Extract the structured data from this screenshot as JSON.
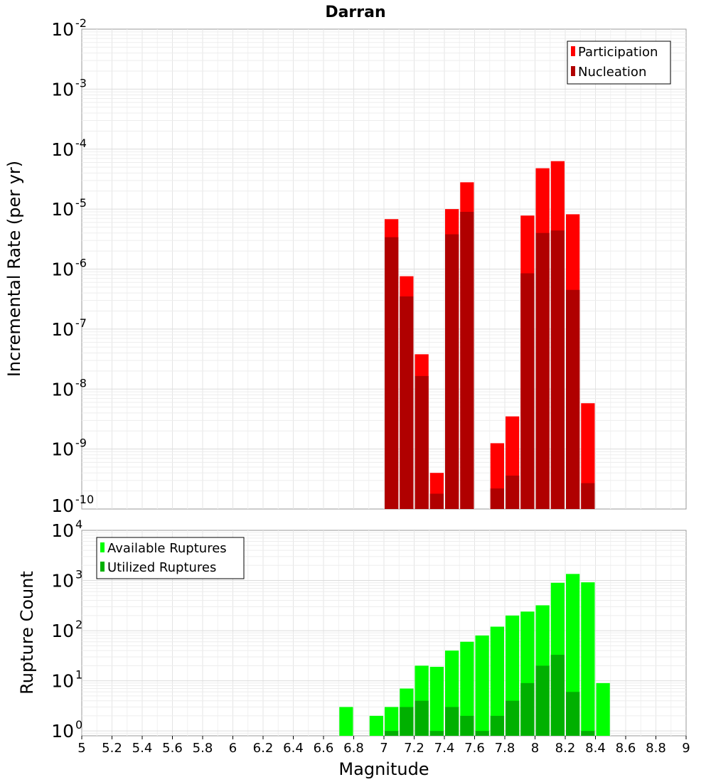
{
  "chart_data": [
    {
      "type": "bar",
      "title": "Darran",
      "ylabel": "Incremental Rate (per yr)",
      "xlabel": "",
      "xlim": [
        5,
        9
      ],
      "ylim": [
        1e-10,
        0.01
      ],
      "y_scale": "log",
      "y_ticks": [
        {
          "base": "10",
          "exp": "-2"
        },
        {
          "base": "10",
          "exp": "-3"
        },
        {
          "base": "10",
          "exp": "-4"
        },
        {
          "base": "10",
          "exp": "-5"
        },
        {
          "base": "10",
          "exp": "-6"
        },
        {
          "base": "10",
          "exp": "-7"
        },
        {
          "base": "10",
          "exp": "-8"
        },
        {
          "base": "10",
          "exp": "-9"
        },
        {
          "base": "10",
          "exp": "-10"
        }
      ],
      "grid": true,
      "legend_position": "top-right",
      "bin_width": 0.1,
      "x": [
        7.05,
        7.15,
        7.25,
        7.35,
        7.45,
        7.55,
        7.75,
        7.85,
        7.95,
        8.05,
        8.15,
        8.25,
        8.35
      ],
      "series": [
        {
          "name": "Participation",
          "color": "#ff0000",
          "values": [
            6.8e-06,
            7.6e-07,
            3.8e-08,
            4e-10,
            1e-05,
            2.8e-05,
            1.25e-09,
            3.5e-09,
            7.8e-06,
            4.8e-05,
            6.3e-05,
            8.2e-06,
            5.8e-09
          ]
        },
        {
          "name": "Nucleation",
          "color": "#b00000",
          "values": [
            3.4e-06,
            3.5e-07,
            1.65e-08,
            1.8e-10,
            3.8e-06,
            9e-06,
            2.2e-10,
            3.6e-10,
            8.5e-07,
            4e-06,
            4.4e-06,
            4.5e-07,
            2.7e-10
          ]
        }
      ]
    },
    {
      "type": "bar",
      "title": "",
      "ylabel": "Rupture Count",
      "xlabel": "Magnitude",
      "xlim": [
        5,
        9
      ],
      "ylim": [
        0.8,
        10000
      ],
      "y_scale": "log",
      "y_ticks": [
        {
          "base": "10",
          "exp": "4"
        },
        {
          "base": "10",
          "exp": "3"
        },
        {
          "base": "10",
          "exp": "2"
        },
        {
          "base": "10",
          "exp": "1"
        },
        {
          "base": "10",
          "exp": "0"
        }
      ],
      "x_tick_labels": [
        "5",
        "5.2",
        "5.4",
        "5.6",
        "5.8",
        "6",
        "6.2",
        "6.4",
        "6.6",
        "6.8",
        "7",
        "7.2",
        "7.4",
        "7.6",
        "7.8",
        "8",
        "8.2",
        "8.4",
        "8.6",
        "8.8",
        "9"
      ],
      "grid": true,
      "legend_position": "top-left",
      "bin_width": 0.1,
      "x": [
        6.75,
        6.95,
        7.05,
        7.15,
        7.25,
        7.35,
        7.45,
        7.55,
        7.65,
        7.75,
        7.85,
        7.95,
        8.05,
        8.15,
        8.25,
        8.35,
        8.45
      ],
      "series": [
        {
          "name": "Available Ruptures",
          "color": "#00ff00",
          "values": [
            3,
            2,
            3,
            7,
            20,
            19,
            40,
            60,
            80,
            120,
            200,
            240,
            320,
            900,
            1350,
            920,
            9
          ]
        },
        {
          "name": "Utilized Ruptures",
          "color": "#00b000",
          "values": [
            0,
            0,
            1,
            3,
            4,
            1,
            3,
            2,
            1,
            2,
            4,
            9,
            20,
            33,
            6,
            1,
            0
          ]
        }
      ]
    }
  ]
}
